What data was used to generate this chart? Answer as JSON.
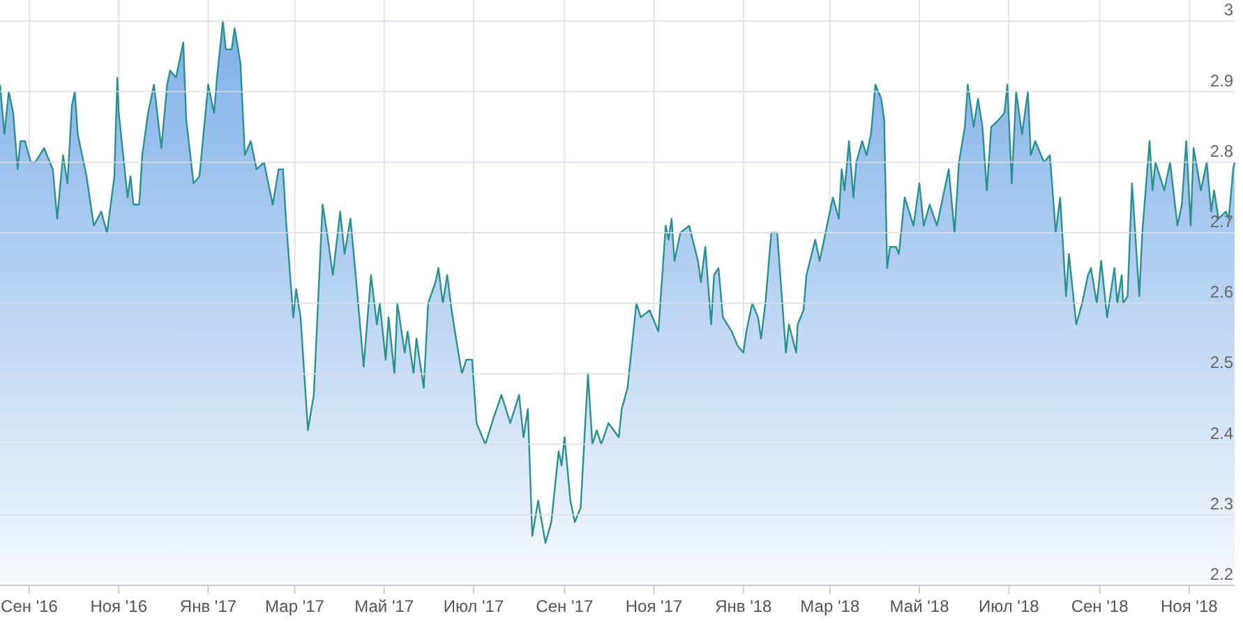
{
  "chart_data": {
    "type": "area",
    "xlim": [
      "2016-08-12",
      "2018-12-02"
    ],
    "xticks": [
      {
        "value": "2016-09-01",
        "label": "Сен '16"
      },
      {
        "value": "2016-11-01",
        "label": "Ноя '16"
      },
      {
        "value": "2017-01-01",
        "label": "Янв '17"
      },
      {
        "value": "2017-03-01",
        "label": "Мар '17"
      },
      {
        "value": "2017-05-01",
        "label": "Май '17"
      },
      {
        "value": "2017-07-01",
        "label": "Июл '17"
      },
      {
        "value": "2017-09-01",
        "label": "Сен '17"
      },
      {
        "value": "2017-11-01",
        "label": "Ноя '17"
      },
      {
        "value": "2018-01-01",
        "label": "Янв '18"
      },
      {
        "value": "2018-03-01",
        "label": "Мар '18"
      },
      {
        "value": "2018-05-01",
        "label": "Май '18"
      },
      {
        "value": "2018-07-01",
        "label": "Июл '18"
      },
      {
        "value": "2018-09-01",
        "label": "Сен '18"
      },
      {
        "value": "2018-11-01",
        "label": "Ноя '18"
      }
    ],
    "ylim": [
      2.2,
      3.03
    ],
    "yticks": [
      2.2,
      2.3,
      2.4,
      2.5,
      2.6,
      2.7,
      2.8,
      2.9,
      3
    ],
    "grid": true,
    "series": [
      {
        "color": "#2b9090",
        "x": [
          "2016-08-12",
          "2016-08-15",
          "2016-08-18",
          "2016-08-21",
          "2016-08-24",
          "2016-08-26",
          "2016-08-29",
          "2016-09-02",
          "2016-09-05",
          "2016-09-11",
          "2016-09-17",
          "2016-09-20",
          "2016-09-24",
          "2016-09-27",
          "2016-09-30",
          "2016-10-02",
          "2016-10-04",
          "2016-10-10",
          "2016-10-15",
          "2016-10-20",
          "2016-10-24",
          "2016-10-29",
          "2016-10-31",
          "2016-11-01",
          "2016-11-07",
          "2016-11-09",
          "2016-11-11",
          "2016-11-15",
          "2016-11-17",
          "2016-11-21",
          "2016-11-25",
          "2016-11-30",
          "2016-12-04",
          "2016-12-06",
          "2016-12-10",
          "2016-12-15",
          "2016-12-17",
          "2016-12-22",
          "2016-12-26",
          "2017-01-01",
          "2017-01-05",
          "2017-01-07",
          "2017-01-11",
          "2017-01-13",
          "2017-01-17",
          "2017-01-19",
          "2017-01-23",
          "2017-01-26",
          "2017-01-30",
          "2017-02-03",
          "2017-02-08",
          "2017-02-14",
          "2017-02-18",
          "2017-02-21",
          "2017-02-23",
          "2017-02-28",
          "2017-03-02",
          "2017-03-05",
          "2017-03-10",
          "2017-03-14",
          "2017-03-16",
          "2017-03-20",
          "2017-03-23",
          "2017-03-27",
          "2017-04-01",
          "2017-04-04",
          "2017-04-08",
          "2017-04-12",
          "2017-04-17",
          "2017-04-22",
          "2017-04-26",
          "2017-04-28",
          "2017-05-02",
          "2017-05-04",
          "2017-05-08",
          "2017-05-10",
          "2017-05-15",
          "2017-05-17",
          "2017-05-21",
          "2017-05-23",
          "2017-05-28",
          "2017-05-31",
          "2017-06-05",
          "2017-06-07",
          "2017-06-10",
          "2017-06-13",
          "2017-06-16",
          "2017-06-19",
          "2017-06-23",
          "2017-06-26",
          "2017-06-30",
          "2017-07-03",
          "2017-07-09",
          "2017-07-15",
          "2017-07-20",
          "2017-07-26",
          "2017-08-01",
          "2017-08-04",
          "2017-08-07",
          "2017-08-10",
          "2017-08-14",
          "2017-08-19",
          "2017-08-23",
          "2017-08-28",
          "2017-08-30",
          "2017-09-01",
          "2017-09-05",
          "2017-09-08",
          "2017-09-12",
          "2017-09-17",
          "2017-09-20",
          "2017-09-23",
          "2017-09-26",
          "2017-10-01",
          "2017-10-08",
          "2017-10-10",
          "2017-10-14",
          "2017-10-20",
          "2017-10-23",
          "2017-10-29",
          "2017-11-04",
          "2017-11-09",
          "2017-11-11",
          "2017-11-13",
          "2017-11-15",
          "2017-11-19",
          "2017-11-25",
          "2017-12-01",
          "2017-12-03",
          "2017-12-06",
          "2017-12-10",
          "2017-12-12",
          "2017-12-15",
          "2017-12-18",
          "2017-12-24",
          "2017-12-28",
          "2018-01-01",
          "2018-01-03",
          "2018-01-07",
          "2018-01-11",
          "2018-01-13",
          "2018-01-16",
          "2018-01-20",
          "2018-01-24",
          "2018-01-30",
          "2018-02-01",
          "2018-02-06",
          "2018-02-07",
          "2018-02-11",
          "2018-02-13",
          "2018-02-19",
          "2018-02-22",
          "2018-02-26",
          "2018-03-01",
          "2018-03-03",
          "2018-03-07",
          "2018-03-09",
          "2018-03-11",
          "2018-03-14",
          "2018-03-17",
          "2018-03-19",
          "2018-03-23",
          "2018-03-26",
          "2018-03-29",
          "2018-04-01",
          "2018-04-05",
          "2018-04-07",
          "2018-04-09",
          "2018-04-11",
          "2018-04-15",
          "2018-04-17",
          "2018-04-21",
          "2018-04-24",
          "2018-04-27",
          "2018-04-29",
          "2018-05-01",
          "2018-05-04",
          "2018-05-08",
          "2018-05-13",
          "2018-05-15",
          "2018-05-21",
          "2018-05-25",
          "2018-05-28",
          "2018-06-01",
          "2018-06-03",
          "2018-06-07",
          "2018-06-10",
          "2018-06-13",
          "2018-06-16",
          "2018-06-19",
          "2018-06-24",
          "2018-06-28",
          "2018-06-30",
          "2018-07-03",
          "2018-07-06",
          "2018-07-10",
          "2018-07-14",
          "2018-07-16",
          "2018-07-19",
          "2018-07-25",
          "2018-07-29",
          "2018-08-02",
          "2018-08-05",
          "2018-08-09",
          "2018-08-11",
          "2018-08-16",
          "2018-08-20",
          "2018-08-24",
          "2018-08-26",
          "2018-08-30",
          "2018-09-02",
          "2018-09-06",
          "2018-09-11",
          "2018-09-13",
          "2018-09-16",
          "2018-09-17",
          "2018-09-20",
          "2018-09-23",
          "2018-09-28",
          "2018-09-30",
          "2018-10-05",
          "2018-10-07",
          "2018-10-09",
          "2018-10-15",
          "2018-10-19",
          "2018-10-24",
          "2018-10-27",
          "2018-10-30",
          "2018-11-02",
          "2018-11-04",
          "2018-11-09",
          "2018-11-13",
          "2018-11-16",
          "2018-11-18",
          "2018-11-21",
          "2018-11-26",
          "2018-11-28",
          "2018-12-01",
          "2018-12-02"
        ],
        "values": [
          2.91,
          2.84,
          2.9,
          2.87,
          2.79,
          2.83,
          2.83,
          2.8,
          2.8,
          2.82,
          2.79,
          2.72,
          2.81,
          2.77,
          2.88,
          2.9,
          2.84,
          2.78,
          2.71,
          2.73,
          2.7,
          2.78,
          2.92,
          2.87,
          2.75,
          2.78,
          2.74,
          2.74,
          2.81,
          2.87,
          2.91,
          2.82,
          2.91,
          2.93,
          2.92,
          2.97,
          2.86,
          2.77,
          2.78,
          2.91,
          2.87,
          2.92,
          3.0,
          2.96,
          2.96,
          2.99,
          2.94,
          2.81,
          2.83,
          2.79,
          2.8,
          2.74,
          2.79,
          2.79,
          2.72,
          2.58,
          2.62,
          2.58,
          2.42,
          2.47,
          2.56,
          2.74,
          2.7,
          2.64,
          2.73,
          2.67,
          2.72,
          2.63,
          2.51,
          2.64,
          2.57,
          2.6,
          2.52,
          2.58,
          2.5,
          2.6,
          2.53,
          2.56,
          2.5,
          2.55,
          2.48,
          2.6,
          2.63,
          2.65,
          2.6,
          2.64,
          2.59,
          2.55,
          2.5,
          2.52,
          2.52,
          2.43,
          2.4,
          2.44,
          2.47,
          2.43,
          2.47,
          2.41,
          2.45,
          2.27,
          2.32,
          2.26,
          2.29,
          2.39,
          2.37,
          2.41,
          2.32,
          2.29,
          2.31,
          2.5,
          2.4,
          2.42,
          2.4,
          2.43,
          2.41,
          2.45,
          2.48,
          2.6,
          2.58,
          2.59,
          2.56,
          2.71,
          2.69,
          2.72,
          2.66,
          2.7,
          2.71,
          2.66,
          2.63,
          2.68,
          2.57,
          2.64,
          2.65,
          2.58,
          2.56,
          2.54,
          2.53,
          2.56,
          2.6,
          2.58,
          2.55,
          2.6,
          2.7,
          2.7,
          2.53,
          2.57,
          2.53,
          2.57,
          2.59,
          2.64,
          2.69,
          2.66,
          2.7,
          2.73,
          2.75,
          2.72,
          2.79,
          2.76,
          2.83,
          2.75,
          2.8,
          2.83,
          2.81,
          2.84,
          2.91,
          2.89,
          2.86,
          2.65,
          2.68,
          2.68,
          2.67,
          2.75,
          2.73,
          2.71,
          2.74,
          2.77,
          2.71,
          2.74,
          2.71,
          2.73,
          2.79,
          2.7,
          2.8,
          2.85,
          2.91,
          2.85,
          2.89,
          2.85,
          2.76,
          2.85,
          2.86,
          2.87,
          2.91,
          2.77,
          2.9,
          2.84,
          2.9,
          2.81,
          2.83,
          2.8,
          2.81,
          2.7,
          2.75,
          2.61,
          2.67,
          2.57,
          2.6,
          2.64,
          2.65,
          2.6,
          2.66,
          2.58,
          2.65,
          2.6,
          2.64,
          2.6,
          2.61,
          2.77,
          2.61,
          2.7,
          2.83,
          2.76,
          2.8,
          2.76,
          2.8,
          2.71,
          2.74,
          2.83,
          2.71,
          2.82,
          2.76,
          2.8,
          2.73,
          2.76,
          2.72,
          2.73,
          2.72,
          2.79,
          2.8
        ]
      }
    ]
  }
}
